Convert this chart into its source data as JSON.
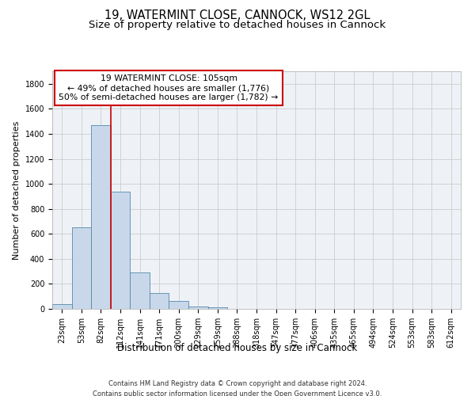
{
  "title1": "19, WATERMINT CLOSE, CANNOCK, WS12 2GL",
  "title2": "Size of property relative to detached houses in Cannock",
  "xlabel": "Distribution of detached houses by size in Cannock",
  "ylabel": "Number of detached properties",
  "bin_labels": [
    "23sqm",
    "53sqm",
    "82sqm",
    "112sqm",
    "141sqm",
    "171sqm",
    "200sqm",
    "229sqm",
    "259sqm",
    "288sqm",
    "318sqm",
    "347sqm",
    "377sqm",
    "406sqm",
    "435sqm",
    "465sqm",
    "494sqm",
    "524sqm",
    "553sqm",
    "583sqm",
    "612sqm"
  ],
  "bar_values": [
    38,
    650,
    1470,
    935,
    290,
    125,
    62,
    22,
    14,
    0,
    0,
    0,
    0,
    0,
    0,
    0,
    0,
    0,
    0,
    0,
    0
  ],
  "bar_color": "#c8d8ea",
  "bar_edge_color": "#5588aa",
  "vline_color": "#cc0000",
  "annotation_text": "19 WATERMINT CLOSE: 105sqm\n← 49% of detached houses are smaller (1,776)\n50% of semi-detached houses are larger (1,782) →",
  "annotation_box_color": "#ffffff",
  "annotation_box_edge": "#cc0000",
  "ylim": [
    0,
    1900
  ],
  "yticks": [
    0,
    200,
    400,
    600,
    800,
    1000,
    1200,
    1400,
    1600,
    1800
  ],
  "grid_color": "#cccccc",
  "bg_color": "#eef2f7",
  "footnote": "Contains HM Land Registry data © Crown copyright and database right 2024.\nContains public sector information licensed under the Open Government Licence v3.0.",
  "title1_fontsize": 10.5,
  "title2_fontsize": 9.5,
  "xlabel_fontsize": 8.5,
  "ylabel_fontsize": 8,
  "tick_fontsize": 7,
  "annot_fontsize": 7.8,
  "footnote_fontsize": 6
}
